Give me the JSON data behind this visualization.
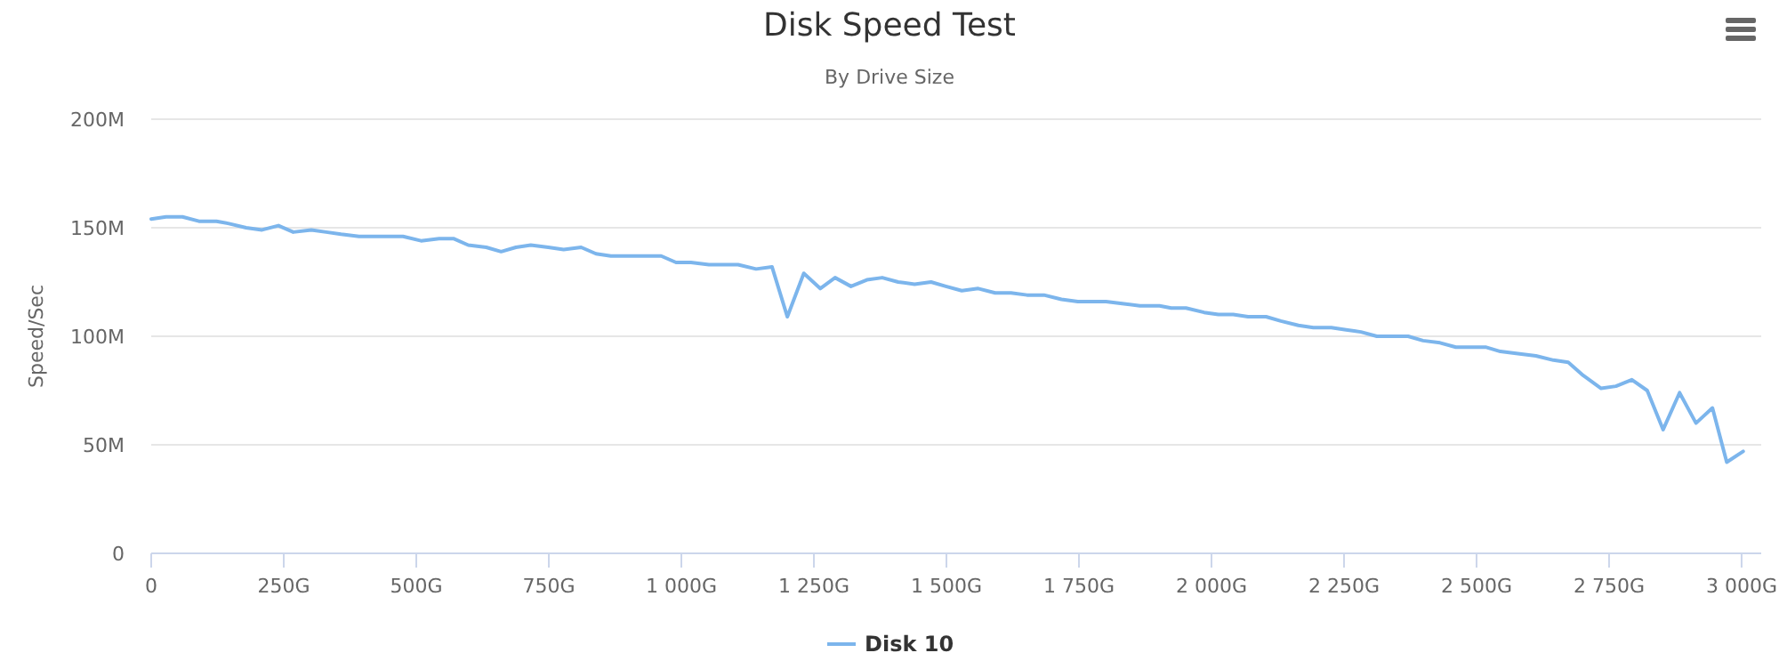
{
  "chart_data": {
    "type": "line",
    "title": "Disk Speed Test",
    "subtitle": "By Drive Size",
    "ylabel": "Speed/Sec",
    "xlim": [
      0,
      3037
    ],
    "ylim": [
      0,
      200
    ],
    "xticks": [
      0,
      {
        "value": 250,
        "label": "250G"
      },
      {
        "value": 500,
        "label": "500G"
      },
      {
        "value": 750,
        "label": "750G"
      },
      {
        "value": 1000,
        "label": "1 000G"
      },
      {
        "value": 1250,
        "label": "1 250G"
      },
      {
        "value": 1500,
        "label": "1 500G"
      },
      {
        "value": 1750,
        "label": "1 750G"
      },
      {
        "value": 2000,
        "label": "2 000G"
      },
      {
        "value": 2250,
        "label": "2 250G"
      },
      {
        "value": 2500,
        "label": "2 500G"
      },
      {
        "value": 2750,
        "label": "2 750G"
      },
      {
        "value": 3000,
        "label": "3 000G"
      }
    ],
    "yticks": [
      0,
      {
        "value": 50,
        "label": "50M"
      },
      {
        "value": 100,
        "label": "100M"
      },
      {
        "value": 150,
        "label": "150M"
      },
      {
        "value": 200,
        "label": "200M"
      }
    ],
    "grid": "y",
    "legend": "bottom",
    "marker": "none",
    "line_style": "solid",
    "series": [
      {
        "name": "Disk 10",
        "color": "#7cb5ec",
        "x": [
          0,
          28,
          59,
          90,
          123,
          145,
          179,
          209,
          240,
          268,
          302,
          330,
          358,
          392,
          425,
          475,
          509,
          543,
          570,
          598,
          632,
          660,
          688,
          716,
          749,
          778,
          811,
          839,
          867,
          962,
          990,
          1018,
          1052,
          1080,
          1107,
          1141,
          1171,
          1200,
          1231,
          1262,
          1290,
          1320,
          1350,
          1379,
          1409,
          1440,
          1471,
          1499,
          1529,
          1560,
          1592,
          1622,
          1652,
          1684,
          1717,
          1748,
          1779,
          1801,
          1835,
          1865,
          1902,
          1924,
          1952,
          1986,
          2013,
          2041,
          2069,
          2103,
          2131,
          2164,
          2192,
          2226,
          2254,
          2282,
          2312,
          2343,
          2371,
          2399,
          2431,
          2461,
          2489,
          2517,
          2545,
          2578,
          2612,
          2645,
          2673,
          2701,
          2735,
          2763,
          2793,
          2822,
          2852,
          2883,
          2914,
          2945,
          2972,
          3003
        ],
        "values": [
          154,
          155,
          155,
          153,
          153,
          152,
          150,
          149,
          151,
          148,
          149,
          148,
          147,
          146,
          146,
          146,
          144,
          145,
          145,
          142,
          141,
          139,
          141,
          142,
          141,
          140,
          141,
          138,
          137,
          137,
          134,
          134,
          133,
          133,
          133,
          131,
          132,
          109,
          129,
          122,
          127,
          123,
          126,
          127,
          125,
          124,
          125,
          123,
          121,
          122,
          120,
          120,
          119,
          119,
          117,
          116,
          116,
          116,
          115,
          114,
          114,
          113,
          113,
          111,
          110,
          110,
          109,
          109,
          107,
          105,
          104,
          104,
          103,
          102,
          100,
          100,
          100,
          98,
          97,
          95,
          95,
          95,
          93,
          92,
          91,
          89,
          88,
          82,
          76,
          77,
          80,
          75,
          57,
          74,
          60,
          67,
          42,
          47
        ]
      }
    ]
  }
}
